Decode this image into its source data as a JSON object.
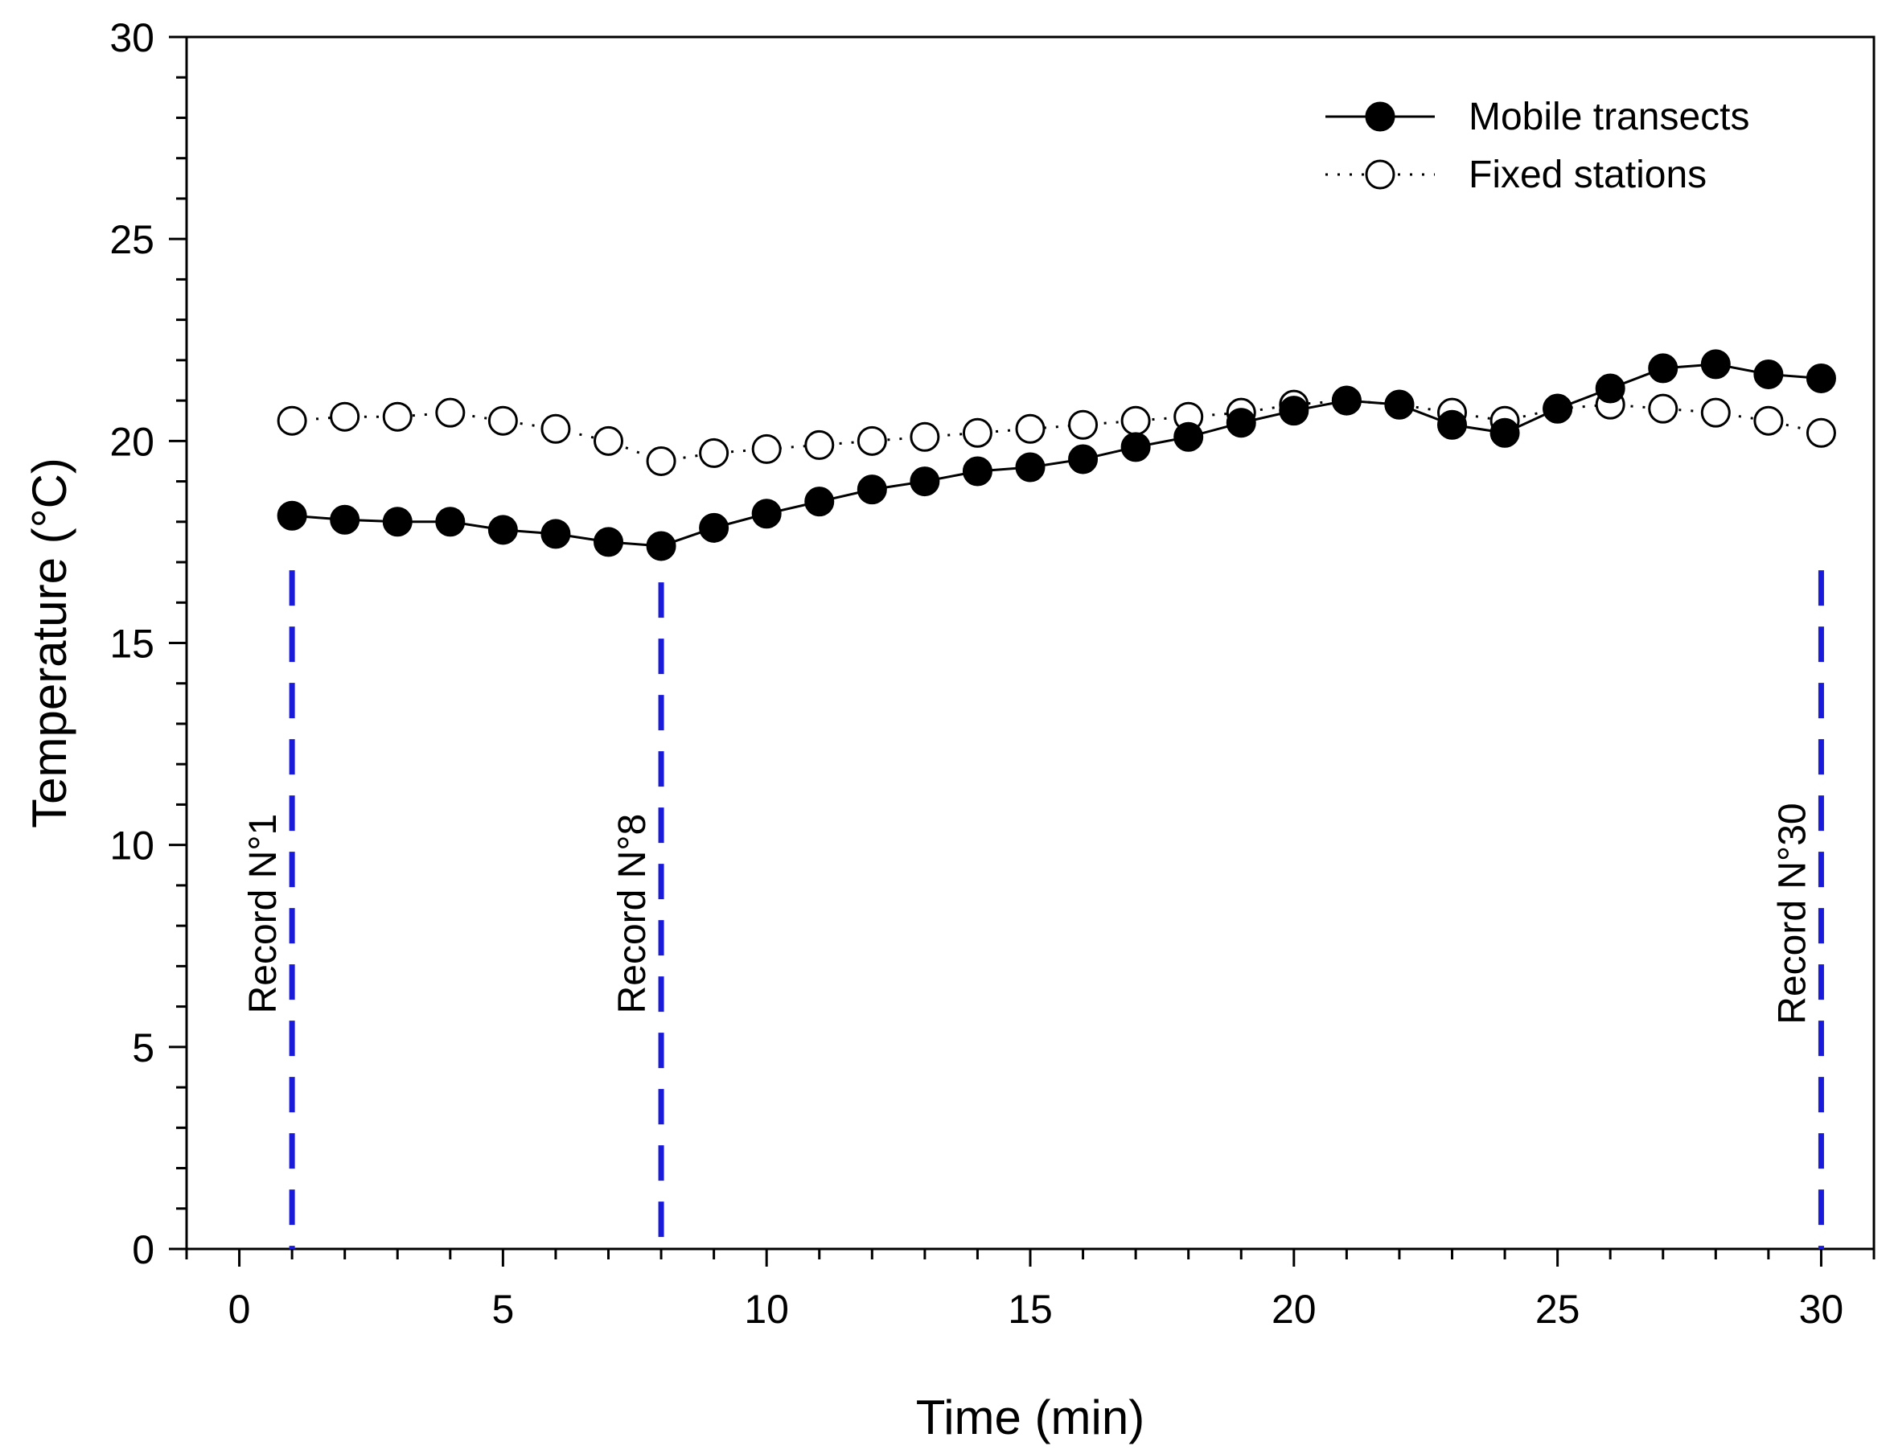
{
  "chart_data": {
    "type": "line",
    "title": "",
    "xlabel": "Time (min)",
    "ylabel": "Temperature (°C)",
    "xlim": [
      -1,
      31
    ],
    "ylim": [
      0,
      30
    ],
    "xticks": [
      0,
      5,
      10,
      15,
      20,
      25,
      30
    ],
    "yticks": [
      0,
      5,
      10,
      15,
      20,
      25,
      30
    ],
    "grid": false,
    "legend_position": "top-right",
    "x": [
      1,
      2,
      3,
      4,
      5,
      6,
      7,
      8,
      9,
      10,
      11,
      12,
      13,
      14,
      15,
      16,
      17,
      18,
      19,
      20,
      21,
      22,
      23,
      24,
      25,
      26,
      27,
      28,
      29,
      30
    ],
    "series": [
      {
        "name": "Mobile transects",
        "marker": "filled-circle",
        "line": "solid",
        "values": [
          18.15,
          18.05,
          18.0,
          18.0,
          17.8,
          17.7,
          17.5,
          17.4,
          17.85,
          18.2,
          18.5,
          18.8,
          19.0,
          19.25,
          19.35,
          19.55,
          19.85,
          20.1,
          20.45,
          20.75,
          21.0,
          20.9,
          20.4,
          20.2,
          20.8,
          21.3,
          21.8,
          21.9,
          21.65,
          21.55
        ]
      },
      {
        "name": "Fixed stations",
        "marker": "open-circle",
        "line": "dotted",
        "values": [
          20.5,
          20.6,
          20.6,
          20.7,
          20.5,
          20.3,
          20.0,
          19.5,
          19.7,
          19.8,
          19.9,
          20.0,
          20.1,
          20.2,
          20.3,
          20.4,
          20.5,
          20.6,
          20.7,
          20.9,
          21.0,
          20.9,
          20.7,
          20.5,
          20.8,
          20.9,
          20.8,
          20.7,
          20.5,
          20.2
        ]
      }
    ],
    "annotations": [
      {
        "x": 1,
        "label": "Record N°1",
        "y_top": 16.8
      },
      {
        "x": 8,
        "label": "Record N°8",
        "y_top": 16.5
      },
      {
        "x": 30,
        "label": "Record N°30",
        "y_top": 16.8
      }
    ],
    "colors": {
      "annotation_line": "#1a1adb",
      "series_line": "#000000",
      "axis": "#000000"
    }
  }
}
